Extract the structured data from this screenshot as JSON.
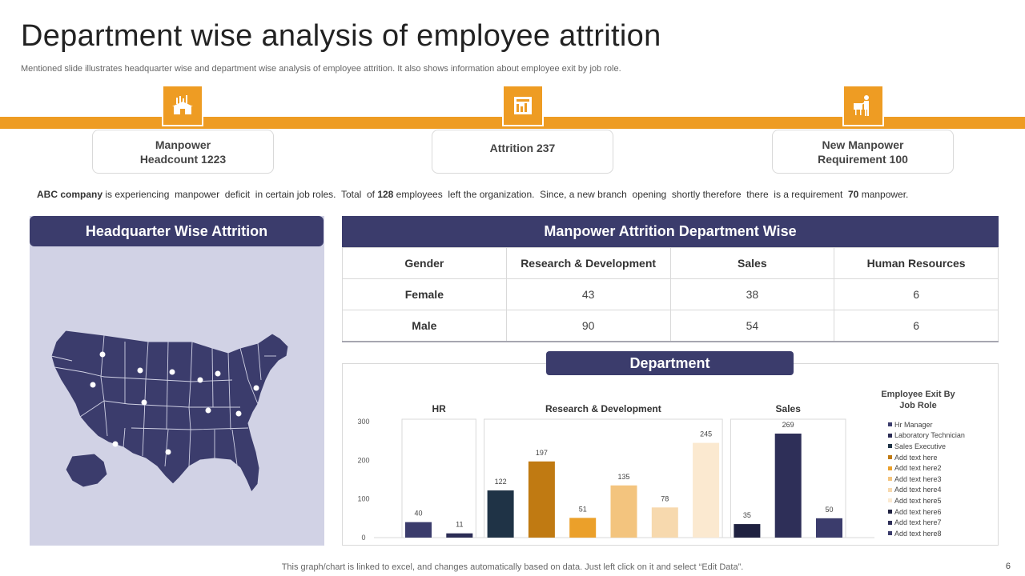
{
  "slide": {
    "title": "Department wise analysis of employee attrition",
    "subtitle": "Mentioned slide illustrates headquarter wise and department wise analysis of employee attrition. It also shows information about employee exit by job role.",
    "footer": "This graph/chart is linked to excel,  and changes automatically based on data. Just left click on it and select “Edit Data”.",
    "page_number": "6",
    "accent_color": "#ee9c23",
    "navy_color": "#3b3c6c"
  },
  "stats": [
    {
      "line1": "Manpower",
      "line2": "Headcount 1223",
      "icon": "warehouse-chart-icon"
    },
    {
      "line1": "Attrition 237",
      "line2": "",
      "icon": "building-chart-icon"
    },
    {
      "line1": "New Manpower",
      "line2": "Requirement 100",
      "icon": "presenter-board-icon"
    }
  ],
  "summary": {
    "company": "ABC company",
    "text1": " is experiencing  manpower  deficit  in certain job roles.  Total  of ",
    "left_count": "128",
    "text2": " employees  left the organization.  Since, a new branch  opening  shortly therefore  there  is a requirement  ",
    "requirement": "70",
    "text3": " manpower."
  },
  "hq": {
    "header": "Headquarter Wise Attrition"
  },
  "department_table": {
    "header": "Manpower Attrition Department Wise",
    "columns": [
      "Gender",
      "Research & Development",
      "Sales",
      "Human Resources"
    ],
    "rows": [
      [
        "Female",
        "43",
        "38",
        "6"
      ],
      [
        "Male",
        "90",
        "54",
        "6"
      ]
    ]
  },
  "chart_data": {
    "type": "bar",
    "title": "Department",
    "groups": [
      {
        "name": "HR",
        "values": [
          40,
          11
        ]
      },
      {
        "name": "Research & Development",
        "values": [
          122,
          197,
          51,
          135,
          78,
          245
        ]
      },
      {
        "name": "Sales",
        "values": [
          35,
          269,
          50
        ]
      }
    ],
    "series": [
      {
        "name": "Hr Manager",
        "value": 40,
        "color": "#3b3c6c"
      },
      {
        "name": "Laboratory Technician",
        "value": 11,
        "color": "#2b2c55"
      },
      {
        "name": "Sales Executive",
        "value": 122,
        "color": "#1f3346"
      },
      {
        "name": "Add text here",
        "value": 197,
        "color": "#c07a12"
      },
      {
        "name": "Add text here2",
        "value": 51,
        "color": "#eba02a"
      },
      {
        "name": "Add text here3",
        "value": 135,
        "color": "#f3c47e"
      },
      {
        "name": "Add text here4",
        "value": 78,
        "color": "#f7d9ae"
      },
      {
        "name": "Add text here5",
        "value": 245,
        "color": "#fbe9d0"
      },
      {
        "name": "Add text here6",
        "value": 35,
        "color": "#1f2140"
      },
      {
        "name": "Add text here7",
        "value": 269,
        "color": "#2e2f58"
      },
      {
        "name": "Add text here8",
        "value": 50,
        "color": "#3b3c6c"
      }
    ],
    "yticks": [
      0,
      100,
      200,
      300
    ],
    "ylim": [
      0,
      300
    ],
    "legend_title": "Employee Exit By Job Role",
    "legend_position": "right"
  }
}
